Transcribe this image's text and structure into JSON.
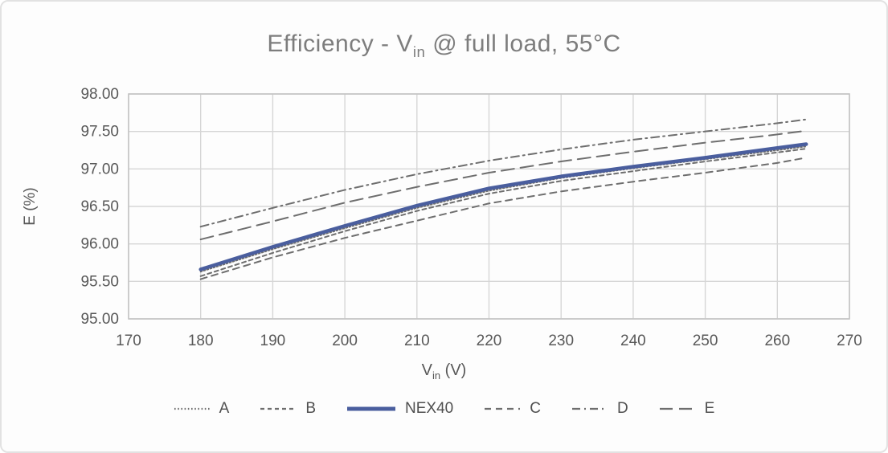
{
  "title": {
    "prefix": "Efficiency - V",
    "subscript": "in",
    "suffix": " @ full load, 55°C"
  },
  "axes": {
    "y_title": "E (%)",
    "x_title_prefix": "V",
    "x_title_subscript": "in",
    "x_title_suffix": " (V)",
    "y_tick_labels": [
      "98.00",
      "97.50",
      "97.00",
      "96.50",
      "96.00",
      "95.50",
      "95.00"
    ],
    "x_tick_labels": [
      "170",
      "180",
      "190",
      "200",
      "210",
      "220",
      "230",
      "240",
      "250",
      "260",
      "270"
    ]
  },
  "colors": {
    "accent_blue": "#4A5E9E",
    "series_gray": "#6e6e6e",
    "gridline": "#d6d6d6",
    "plot_border": "#c4c4c4",
    "tick_text": "#585858",
    "title_text": "#7d7d7d"
  },
  "chart_data": {
    "type": "line",
    "title": "Efficiency - Vin @ full load, 55°C",
    "xlabel": "Vin (V)",
    "ylabel": "E (%)",
    "xlim": [
      170,
      270
    ],
    "ylim": [
      95.0,
      98.0
    ],
    "x_ticks": [
      170,
      180,
      190,
      200,
      210,
      220,
      230,
      240,
      250,
      260,
      270
    ],
    "y_ticks": [
      95.0,
      95.5,
      96.0,
      96.5,
      97.0,
      97.5,
      98.0
    ],
    "grid": true,
    "legend_position": "bottom",
    "x": [
      180,
      190,
      200,
      210,
      220,
      230,
      240,
      250,
      260,
      264
    ],
    "series": [
      {
        "name": "A",
        "style": "dotted",
        "color": "#6e6e6e",
        "width": 2,
        "dash": "1.6 2.6",
        "values": [
          95.63,
          95.93,
          96.21,
          96.48,
          96.71,
          96.88,
          97.01,
          97.13,
          97.25,
          97.3
        ]
      },
      {
        "name": "B",
        "style": "short-dash",
        "color": "#6e6e6e",
        "width": 2,
        "dash": "5 4",
        "values": [
          95.57,
          95.88,
          96.17,
          96.44,
          96.67,
          96.84,
          96.97,
          97.1,
          97.22,
          97.27
        ]
      },
      {
        "name": "NEX40",
        "style": "solid",
        "color": "#4A5E9E",
        "width": 4.5,
        "dash": "",
        "values": [
          95.66,
          95.96,
          96.24,
          96.51,
          96.74,
          96.9,
          97.03,
          97.15,
          97.28,
          97.33
        ]
      },
      {
        "name": "C",
        "style": "dash",
        "color": "#6e6e6e",
        "width": 2,
        "dash": "8 6",
        "values": [
          95.53,
          95.82,
          96.08,
          96.31,
          96.54,
          96.7,
          96.83,
          96.95,
          97.08,
          97.15
        ]
      },
      {
        "name": "D",
        "style": "dash-dot",
        "color": "#6e6e6e",
        "width": 2,
        "dash": "10 5 2 5",
        "values": [
          96.23,
          96.48,
          96.72,
          96.93,
          97.11,
          97.26,
          97.39,
          97.5,
          97.61,
          97.66
        ]
      },
      {
        "name": "E",
        "style": "long-dash",
        "color": "#6e6e6e",
        "width": 2,
        "dash": "16 8",
        "values": [
          96.06,
          96.3,
          96.55,
          96.76,
          96.95,
          97.1,
          97.23,
          97.35,
          97.46,
          97.51
        ]
      }
    ]
  }
}
